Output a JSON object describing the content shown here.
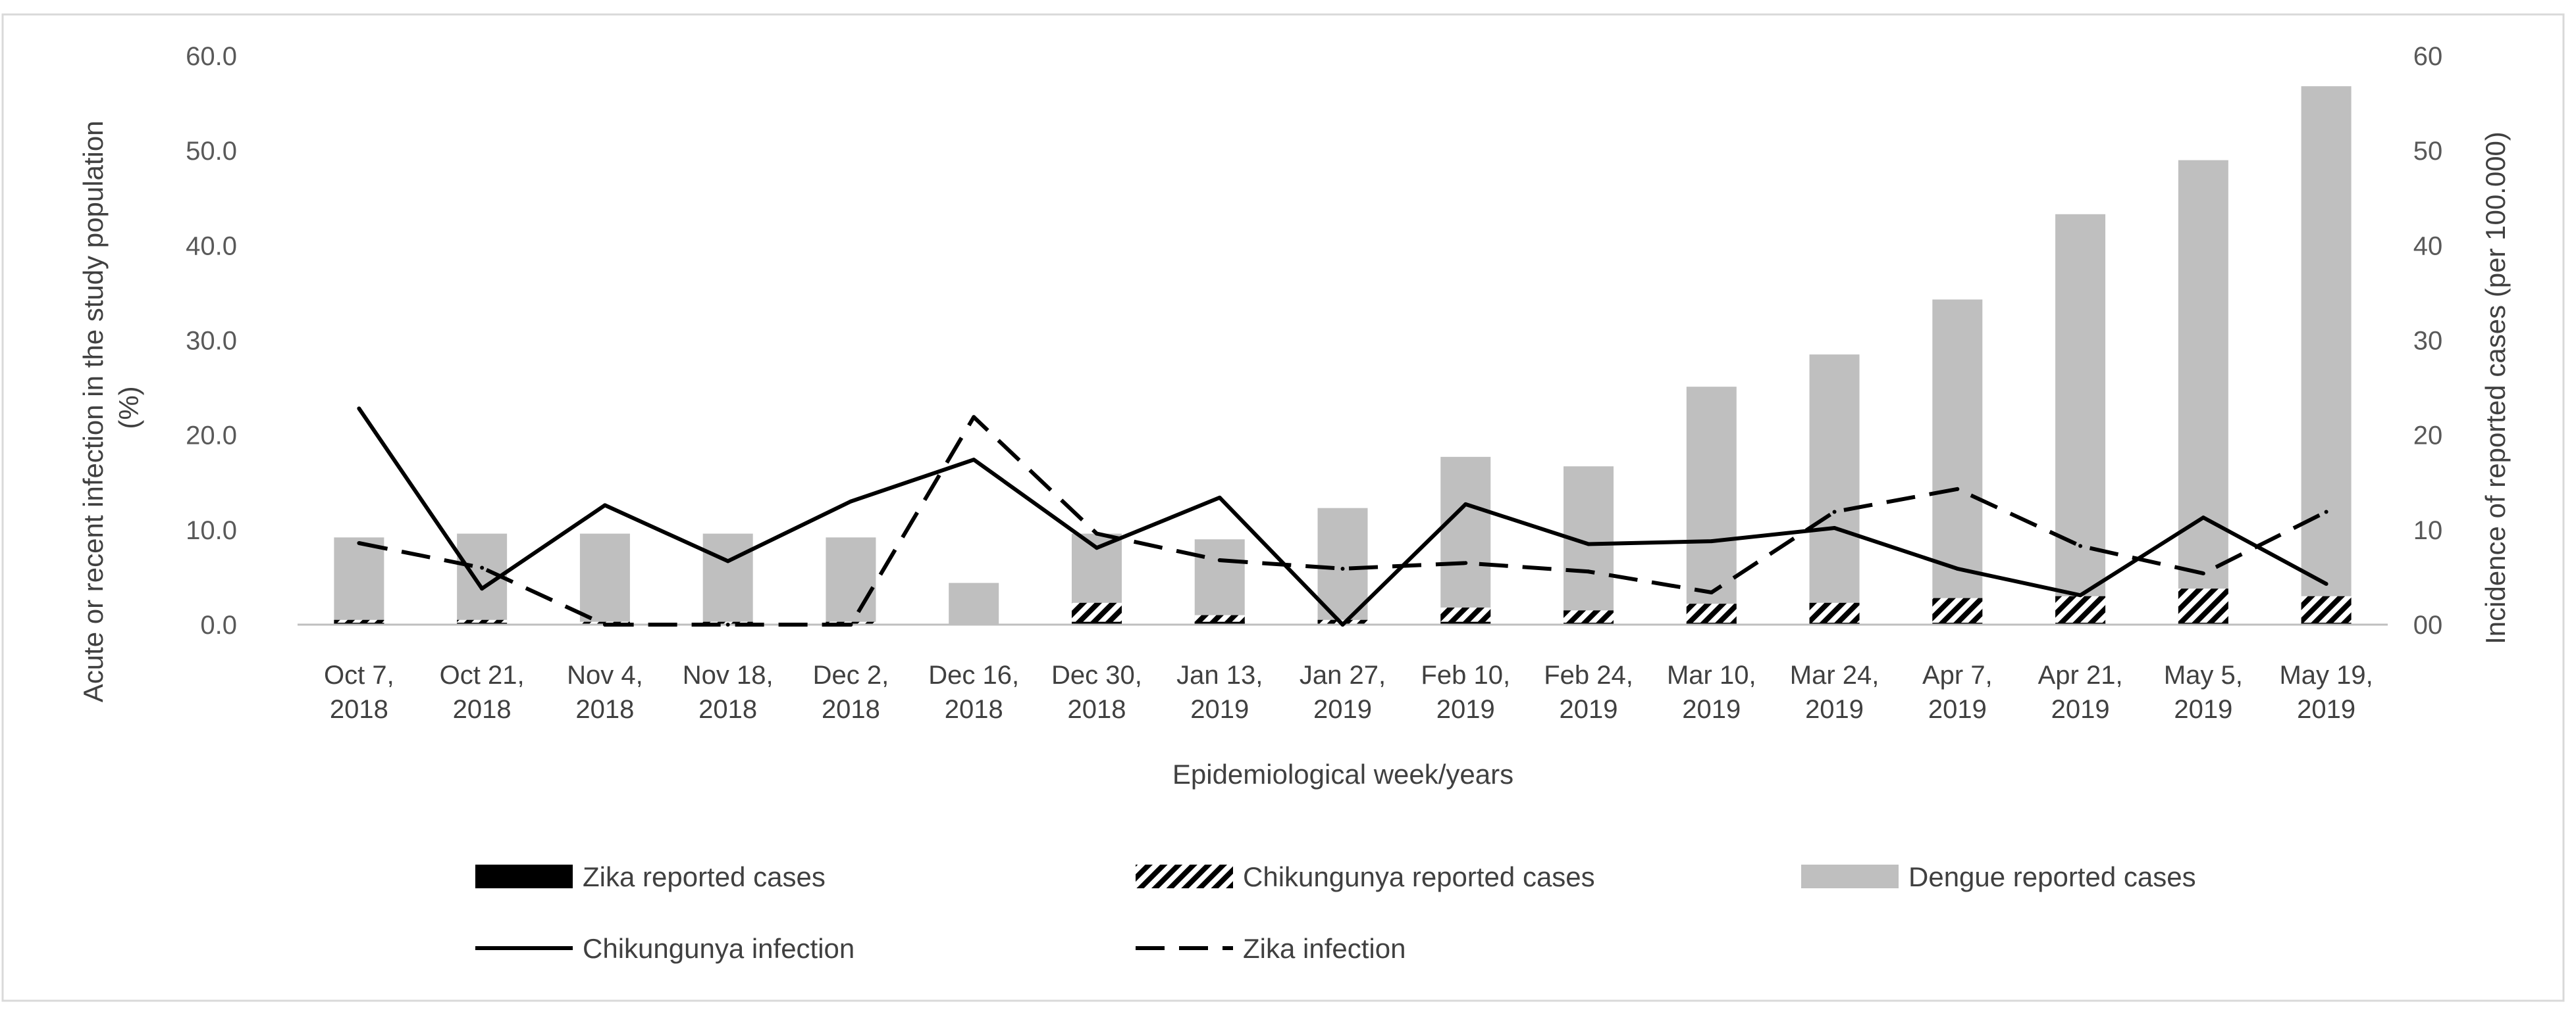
{
  "chart_data": {
    "type": "bar+line",
    "title": "",
    "xlabel": "Epidemiological week/years",
    "ylabel_left": "Acute or recent infection in the study population (%)",
    "ylabel_right": "Incidence of reported  cases (per 100.000)",
    "ylim_left": [
      0,
      60
    ],
    "ylim_right": [
      0,
      60
    ],
    "yticks_left": [
      "0.0",
      "10.0",
      "20.0",
      "30.0",
      "40.0",
      "50.0",
      "60.0"
    ],
    "yticks_right": [
      "00",
      "10",
      "20",
      "30",
      "40",
      "50",
      "60"
    ],
    "categories": [
      [
        "Oct 7,",
        "2018"
      ],
      [
        "Oct 21,",
        "2018"
      ],
      [
        "Nov 4,",
        "2018"
      ],
      [
        "Nov 18,",
        "2018"
      ],
      [
        "Dec 2,",
        "2018"
      ],
      [
        "Dec 16,",
        "2018"
      ],
      [
        "Dec 30,",
        "2018"
      ],
      [
        "Jan 13,",
        "2019"
      ],
      [
        "Jan 27,",
        "2019"
      ],
      [
        "Feb 10,",
        "2019"
      ],
      [
        "Feb 24,",
        "2019"
      ],
      [
        "Mar 10,",
        "2019"
      ],
      [
        "Mar 24,",
        "2019"
      ],
      [
        "Apr 7,",
        "2019"
      ],
      [
        "Apr 21,",
        "2019"
      ],
      [
        "May 5,",
        "2019"
      ],
      [
        "May 19,",
        "2019"
      ]
    ],
    "series": [
      {
        "name": "Zika reported cases",
        "kind": "bar",
        "axis": "right",
        "style": "solid-black",
        "values": [
          0.2,
          0.2,
          0.1,
          0.1,
          0.1,
          0,
          0.3,
          0.3,
          0.1,
          0.3,
          0.2,
          0.2,
          0.2,
          0.2,
          0.2,
          0.2,
          0.2
        ]
      },
      {
        "name": "Chikungunya reported cases",
        "kind": "bar",
        "axis": "right",
        "style": "hatched",
        "values": [
          0.5,
          0.5,
          0.3,
          0.3,
          0.3,
          0,
          2.3,
          1.0,
          0.5,
          1.8,
          1.5,
          2.2,
          2.3,
          2.8,
          3.0,
          3.8,
          3.0
        ]
      },
      {
        "name": "Dengue reported cases",
        "kind": "bar",
        "axis": "right",
        "style": "gray",
        "values": [
          9.2,
          9.6,
          9.6,
          9.6,
          9.2,
          4.4,
          9.6,
          9.0,
          12.3,
          17.7,
          16.7,
          25.1,
          28.5,
          34.3,
          43.3,
          49.0,
          56.8
        ]
      },
      {
        "name": "Chikungunya infection",
        "kind": "line",
        "axis": "left",
        "style": "solid",
        "values": [
          22.8,
          3.8,
          12.6,
          6.7,
          13.0,
          17.4,
          8.1,
          13.4,
          0.0,
          12.7,
          8.5,
          8.8,
          10.2,
          5.9,
          3.1,
          11.3,
          4.3
        ]
      },
      {
        "name": "Zika infection",
        "kind": "line",
        "axis": "left",
        "style": "dashed",
        "values": [
          8.6,
          6.0,
          0.0,
          0.0,
          0.0,
          21.9,
          9.6,
          6.8,
          5.9,
          6.5,
          5.6,
          3.4,
          11.9,
          14.3,
          8.3,
          5.4,
          11.9
        ]
      }
    ],
    "legend_position": "bottom",
    "grid": false
  },
  "legend": {
    "zika_cases": "Zika reported cases",
    "chik_cases": "Chikungunya reported cases",
    "dengue_cases": "Dengue reported cases",
    "chik_infection": "Chikungunya infection",
    "zika_infection": "Zika infection"
  },
  "colors": {
    "dengue": "#bfbfbf",
    "lines": "#000000",
    "text": "#404040",
    "axis": "#bfbfbf",
    "frame": "#d9d9d9"
  }
}
